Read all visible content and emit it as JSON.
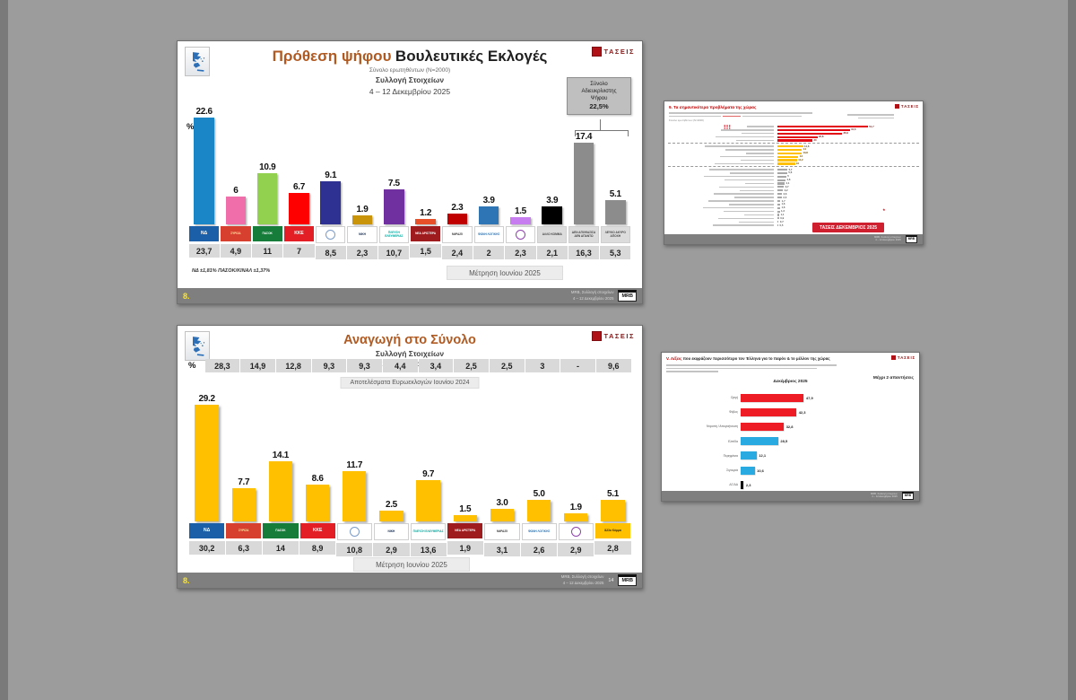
{
  "brand": "ΤΑΣΕΙΣ",
  "mrb": "MRB",
  "footer_note": {
    "line1": "MRB, Συλλογή στοιχείων",
    "line2": "4 – 12 Δεκεμβρίου 2025"
  },
  "slides": {
    "voting_intention": {
      "title_accent": "Πρόθεση ψήφου",
      "title_rest": "Βουλευτικές Εκλογές",
      "subtitle_n": "Σύνολο ερωτηθέντων (Ν=2000)",
      "subtitle_collect": "Συλλογή Στοιχείων",
      "subtitle_dates": "4 – 12 Δεκεμβρίου 2025",
      "percent_label": "%",
      "undecided": {
        "l1": "Σύνολο",
        "l2": "Αδιευκρίνιστης",
        "l3": "Ψήφου",
        "value": "22,5%"
      },
      "footnote": "ΝΔ ±1,81% ΠΑΣΟΚ/ΚΙΝΑΛ ±1,37%",
      "prev_box_label": "Μέτρηση Ιουνίου 2025",
      "page_badge": "8.",
      "parties": [
        {
          "name": "ΝΔ",
          "logo_text": "ΝΔ",
          "logo_style": "text",
          "logo_bg": "#1b5fa8",
          "logo_fg": "#ffffff",
          "logo_big": true,
          "color": "#1a86c8",
          "value": "22.6",
          "v": 22.6,
          "prev": "23,7"
        },
        {
          "name": "ΣΥΡΙΖΑ",
          "logo_text": "ΣΥΡΙΖΑ",
          "logo_style": "text",
          "logo_bg": "#d7402e",
          "logo_fg": "#ffe9a8",
          "color": "#f06eaa",
          "value": "6",
          "v": 6,
          "prev": "4,9"
        },
        {
          "name": "ΠΑΣΟΚ",
          "logo_text": "ΠΑΣΟΚ",
          "logo_style": "text",
          "logo_bg": "#157c3a",
          "logo_fg": "#ffffff",
          "color": "#92d050",
          "value": "10.9",
          "v": 10.9,
          "prev": "11"
        },
        {
          "name": "ΚΚΕ",
          "logo_text": "ΚΚΕ",
          "logo_style": "text",
          "logo_bg": "#e31e24",
          "logo_fg": "#ffffff",
          "logo_big": true,
          "color": "#fe0000",
          "value": "6.7",
          "v": 6.7,
          "prev": "7"
        },
        {
          "name": "ΕΛΛΗΝΙΚΗ ΛΥΣΗ",
          "logo_text": "",
          "logo_style": "ring",
          "logo_bg": "#ffffff",
          "logo_fg": "#7c9cc8",
          "color": "#2e3192",
          "value": "9.1",
          "v": 9.1,
          "prev": "8,5"
        },
        {
          "name": "ΝΙΚΗ",
          "logo_text": "ΝΙΚΗ",
          "logo_style": "text",
          "logo_bg": "#ffffff",
          "logo_fg": "#12284b",
          "color": "#c9940a",
          "value": "1.9",
          "v": 1.9,
          "prev": "2,3"
        },
        {
          "name": "ΠΛΕΥΣΗ ΕΛΕΥΘΕΡΙΑΣ",
          "logo_text": "ΠΛΕΥΣΗ ΕΛΕΥΘΕΡΙΑΣ",
          "logo_style": "text",
          "logo_bg": "#ffffff",
          "logo_fg": "#00a79d",
          "color": "#7030a0",
          "value": "7.5",
          "v": 7.5,
          "prev": "10,7"
        },
        {
          "name": "ΝΕΑ ΑΡΙΣΤΕΡΑ",
          "logo_text": "ΝΕΑ ΑΡΙΣΤΕΡΑ",
          "logo_style": "text",
          "logo_bg": "#9e1b1e",
          "logo_fg": "#ffffff",
          "color": "#e8502a",
          "value": "1.2",
          "v": 1.2,
          "prev": "1,5"
        },
        {
          "name": "ΜέΡΑ25",
          "logo_text": "ΜέΡΑ25",
          "logo_style": "text",
          "logo_bg": "#ffffff",
          "logo_fg": "#3a3a3a",
          "color": "#c00000",
          "value": "2.3",
          "v": 2.3,
          "prev": "2,4"
        },
        {
          "name": "ΦΩΝΗ ΛΟΓΙΚΗΣ",
          "logo_text": "ΦΩΝΗ ΛΟΓΙΚΗΣ",
          "logo_style": "text",
          "logo_bg": "#ffffff",
          "logo_fg": "#2e75b6",
          "color": "#2e75b6",
          "value": "3.9",
          "v": 3.9,
          "prev": "2"
        },
        {
          "name": "ΚΙΝΗΜΑ ΔΗΜΟΚΡΑΤΙΑΣ",
          "logo_text": "",
          "logo_style": "ring",
          "logo_bg": "#ffffff",
          "logo_fg": "#8e44ad",
          "color": "#c77df0",
          "value": "1.5",
          "v": 1.5,
          "prev": "2,3"
        },
        {
          "name": "ΑΛΛΟ ΚΟΜΜΑ",
          "logo_text": "ΑΛΛΟ ΚΟΜΜΑ",
          "logo_style": "text",
          "logo_bg": "#dcdcdc",
          "logo_fg": "#444444",
          "color": "#000000",
          "value": "3.9",
          "v": 3.9,
          "prev": "2,1"
        },
        {
          "name": "ΔΕΝ ΑΠΟΦΑΣΙΣΑ / ΔΕΝ ΑΠΑΝΤΩ",
          "logo_text": "ΔΕΝ ΑΠΟΦΑΣΙΣΑ ΔΕΝ ΑΠΑΝΤΩ",
          "logo_style": "text",
          "logo_bg": "#dcdcdc",
          "logo_fg": "#444444",
          "color": "#8c8c8c",
          "value": "17.4",
          "v": 17.4,
          "prev": "16,3"
        },
        {
          "name": "ΛΕΥΚΟ / ΑΚΥΡΟ / ΑΠΟΧΗ",
          "logo_text": "ΛΕΥΚΟ ΑΚΥΡΟ ΑΠΟΧΗ",
          "logo_style": "text",
          "logo_bg": "#dcdcdc",
          "logo_fg": "#444444",
          "color": "#8c8c8c",
          "value": "5.1",
          "v": 5.1,
          "prev": "5,3"
        }
      ]
    },
    "projection": {
      "title": "Αναγωγή στο Σύνολο",
      "subtitle_collect": "Συλλογή Στοιχείων",
      "subtitle_dates": "4 – 12 Δεκεμβρίου 2025",
      "percent_label": "%",
      "euro_label": "Αποτελέσματα Ευρωεκλογών Ιουνίου 2024",
      "euro_values": [
        "28,3",
        "14,9",
        "12,8",
        "9,3",
        "9,3",
        "4,4",
        "3,4",
        "2,5",
        "2,5",
        "3",
        "-",
        "9,6"
      ],
      "prev_box_label": "Μέτρηση Ιουνίου 2025",
      "page_badge": "8.",
      "page_number": "14",
      "parties": [
        {
          "name": "ΝΔ",
          "logo_text": "ΝΔ",
          "logo_style": "text",
          "logo_bg": "#1b5fa8",
          "logo_fg": "#ffffff",
          "logo_big": true,
          "color": "#ffc000",
          "value": "29.2",
          "v": 29.2,
          "prev": "30,2"
        },
        {
          "name": "ΣΥΡΙΖΑ",
          "logo_text": "ΣΥΡΙΖΑ",
          "logo_style": "text",
          "logo_bg": "#d7402e",
          "logo_fg": "#ffe9a8",
          "color": "#ffc000",
          "value": "7.7",
          "v": 7.7,
          "prev": "6,3"
        },
        {
          "name": "ΠΑΣΟΚ",
          "logo_text": "ΠΑΣΟΚ",
          "logo_style": "text",
          "logo_bg": "#157c3a",
          "logo_fg": "#ffffff",
          "color": "#ffc000",
          "value": "14.1",
          "v": 14.1,
          "prev": "14"
        },
        {
          "name": "ΚΚΕ",
          "logo_text": "ΚΚΕ",
          "logo_style": "text",
          "logo_bg": "#e31e24",
          "logo_fg": "#ffffff",
          "logo_big": true,
          "color": "#ffc000",
          "value": "8.6",
          "v": 8.6,
          "prev": "8,9"
        },
        {
          "name": "ΕΛΛΗΝΙΚΗ ΛΥΣΗ",
          "logo_text": "",
          "logo_style": "ring",
          "logo_bg": "#ffffff",
          "logo_fg": "#7c9cc8",
          "color": "#ffc000",
          "value": "11.7",
          "v": 11.7,
          "prev": "10,8"
        },
        {
          "name": "ΝΙΚΗ",
          "logo_text": "ΝΙΚΗ",
          "logo_style": "text",
          "logo_bg": "#ffffff",
          "logo_fg": "#12284b",
          "color": "#ffc000",
          "value": "2.5",
          "v": 2.5,
          "prev": "2,9"
        },
        {
          "name": "ΠΛΕΥΣΗ ΕΛΕΥΘΕΡΙΑΣ",
          "logo_text": "ΠΛΕΥΣΗ ΕΛΕΥΘΕΡΙΑΣ",
          "logo_style": "text",
          "logo_bg": "#ffffff",
          "logo_fg": "#00a79d",
          "color": "#ffc000",
          "value": "9.7",
          "v": 9.7,
          "prev": "13,6"
        },
        {
          "name": "ΝΕΑ ΑΡΙΣΤΕΡΑ",
          "logo_text": "ΝΕΑ ΑΡΙΣΤΕΡΑ",
          "logo_style": "text",
          "logo_bg": "#9e1b1e",
          "logo_fg": "#ffffff",
          "color": "#ffc000",
          "value": "1.5",
          "v": 1.5,
          "prev": "1,9"
        },
        {
          "name": "ΜέΡΑ25",
          "logo_text": "ΜέΡΑ25",
          "logo_style": "text",
          "logo_bg": "#ffffff",
          "logo_fg": "#3a3a3a",
          "color": "#ffc000",
          "value": "3.0",
          "v": 3.0,
          "prev": "3,1"
        },
        {
          "name": "ΦΩΝΗ ΛΟΓΙΚΗΣ",
          "logo_text": "ΦΩΝΗ ΛΟΓΙΚΗΣ",
          "logo_style": "text",
          "logo_bg": "#ffffff",
          "logo_fg": "#2e75b6",
          "color": "#ffc000",
          "value": "5.0",
          "v": 5.0,
          "prev": "2,6"
        },
        {
          "name": "ΚΙΝΗΜΑ ΔΗΜΟΚΡΑΤΙΑΣ",
          "logo_text": "",
          "logo_style": "ring",
          "logo_bg": "#ffffff",
          "logo_fg": "#8e44ad",
          "color": "#ffc000",
          "value": "1.9",
          "v": 1.9,
          "prev": "2,9"
        },
        {
          "name": "ΑΛΛΟ ΚΟΜΜΑ",
          "logo_text": "Άλλο Κόμμα",
          "logo_style": "text",
          "logo_bg": "#ffc000",
          "logo_fg": "#222222",
          "color": "#ffc000",
          "value": "5.1",
          "v": 5.1,
          "prev": "2,8"
        }
      ]
    },
    "problems": {
      "title": "9. Τα σημαντικότερα προβλήματα της χώρας",
      "n_note": "Σύνολο ερωτηθέντων (Ν=2000)",
      "alert": "!!!",
      "badge": "ΤΑΣΕΙΣ ΔΕΚΕΜΒΡΙΟΣ 2025",
      "redmark": "*",
      "labels_legible": false,
      "groups": [
        {
          "color": "#e30613",
          "value_color": "#8a1111",
          "rows": [
            {
              "label": "",
              "value": "51,7",
              "v": 51.7
            },
            {
              "label": "",
              "value": "41,3",
              "v": 41.3
            },
            {
              "label": "",
              "value": "36,9",
              "v": 36.9
            },
            {
              "label": "",
              "value": "22,8",
              "v": 22.8
            },
            {
              "label": "",
              "value": "20",
              "v": 20
            }
          ]
        },
        {
          "color": "#ffc000",
          "value_color": "#6e4a00",
          "rows": [
            {
              "label": "",
              "value": "14,6",
              "v": 14.6
            },
            {
              "label": "",
              "value": "14",
              "v": 14
            },
            {
              "label": "",
              "value": "13,8",
              "v": 13.8
            },
            {
              "label": "",
              "value": "12",
              "v": 12
            },
            {
              "label": "",
              "value": "11,2",
              "v": 11.2
            },
            {
              "label": "",
              "value": "10",
              "v": 10
            }
          ]
        },
        {
          "color": "#a6a6a6",
          "value_color": "#555555",
          "rows": [
            {
              "label": "",
              "value": "5,7",
              "v": 5.7
            },
            {
              "label": "",
              "value": "5,6",
              "v": 5.6
            },
            {
              "label": "",
              "value": "5",
              "v": 5
            },
            {
              "label": "",
              "value": "4,6",
              "v": 4.6
            },
            {
              "label": "",
              "value": "4,1",
              "v": 4.1
            },
            {
              "label": "",
              "value": "3,7",
              "v": 3.7
            },
            {
              "label": "",
              "value": "3,2",
              "v": 3.2
            },
            {
              "label": "",
              "value": "2,6",
              "v": 2.6
            },
            {
              "label": "",
              "value": "2,5",
              "v": 2.5
            },
            {
              "label": "",
              "value": "1,7",
              "v": 1.7
            },
            {
              "label": "",
              "value": "1,6",
              "v": 1.6
            },
            {
              "label": "",
              "value": "1,6",
              "v": 1.6
            },
            {
              "label": "",
              "value": "1,3",
              "v": 1.3
            },
            {
              "label": "",
              "value": "1,1",
              "v": 1.1
            },
            {
              "label": "",
              "value": "0,9",
              "v": 0.9
            },
            {
              "label": "",
              "value": "0,7",
              "v": 0.7
            },
            {
              "label": "",
              "value": "0,5",
              "v": 0.5
            }
          ]
        }
      ]
    },
    "words": {
      "title_accent": "V. Λέξεις",
      "title_rest": "που εκφράζουν περισσότερο τον Έλληνα για το παρόν & το μέλλον της χώρας",
      "note": "Μέχρι 2 απαντήσεις",
      "period": "Δεκέμβριος 2025",
      "rows": [
        {
          "label": "Οργή",
          "value": "47,9",
          "v": 47.9,
          "color": "#ee1c25"
        },
        {
          "label": "Φόβος",
          "value": "42,3",
          "v": 42.3,
          "color": "#ee1c25"
        },
        {
          "label": "Ντροπή / Απογοήτευση",
          "value": "32,8",
          "v": 32.8,
          "color": "#ee1c25"
        },
        {
          "label": "Ελπίδα",
          "value": "28,5",
          "v": 28.5,
          "color": "#29abe2"
        },
        {
          "label": "Περηφάνια",
          "value": "12,1",
          "v": 12.1,
          "color": "#29abe2"
        },
        {
          "label": "Σιγουριά",
          "value": "10,6",
          "v": 10.6,
          "color": "#29abe2"
        },
        {
          "label": "ΔΓ/ΔΑ",
          "value": "2,3",
          "v": 2.3,
          "color": "#111111"
        }
      ],
      "ticks": [
        {
          "label": "0",
          "v": 0
        },
        {
          "label": "50",
          "v": 50
        },
        {
          "label": "100",
          "v": 100
        }
      ]
    }
  },
  "chart_data": [
    {
      "type": "bar",
      "title": "Πρόθεση ψήφου Βουλευτικές Εκλογές",
      "subtitle": "Σύνολο ερωτηθέντων (Ν=2000) · Συλλογή Στοιχείων 4 – 12 Δεκεμβρίου 2025",
      "categories": [
        "ΝΔ",
        "ΣΥΡΙΖΑ",
        "ΠΑΣΟΚ",
        "ΚΚΕ",
        "ΕΛΛΗΝΙΚΗ ΛΥΣΗ",
        "ΝΙΚΗ",
        "ΠΛΕΥΣΗ ΕΛΕΥΘΕΡΙΑΣ",
        "ΝΕΑ ΑΡΙΣΤΕΡΑ",
        "ΜέΡΑ25",
        "ΦΩΝΗ ΛΟΓΙΚΗΣ",
        "ΚΙΝΗΜΑ ΔΗΜΟΚΡΑΤΙΑΣ",
        "ΑΛΛΟ ΚΟΜΜΑ",
        "ΔΕΝ ΑΠΟΦΑΣΙΣΑ / ΔΕΝ ΑΠΑΝΤΩ",
        "ΛΕΥΚΟ / ΑΚΥΡΟ / ΑΠΟΧΗ"
      ],
      "series": [
        {
          "name": "Δεκέμβριος 2025",
          "values": [
            22.6,
            6,
            10.9,
            6.7,
            9.1,
            1.9,
            7.5,
            1.2,
            2.3,
            3.9,
            1.5,
            3.9,
            17.4,
            5.1
          ]
        },
        {
          "name": "Μέτρηση Ιουνίου 2025",
          "values": [
            23.7,
            4.9,
            11,
            7,
            8.5,
            2.3,
            10.7,
            1.5,
            2.4,
            2,
            2.3,
            2.1,
            16.3,
            5.3
          ]
        }
      ],
      "annotations": {
        "undecided_total": "Σύνολο Αδιευκρίνιστης Ψήφου 22,5%",
        "margin_of_error": "ΝΔ ±1,81% ΠΑΣΟΚ/ΚΙΝΑΛ ±1,37%"
      },
      "ylabel": "%"
    },
    {
      "type": "bar",
      "orientation": "horizontal",
      "title": "9. Τα σημαντικότερα προβλήματα της χώρας",
      "labels_legible": false,
      "groups": [
        {
          "color": "#e30613",
          "values": [
            51.7,
            41.3,
            36.9,
            22.8,
            20
          ]
        },
        {
          "color": "#ffc000",
          "values": [
            14.6,
            14,
            13.8,
            12,
            11.2,
            10
          ]
        },
        {
          "color": "#a6a6a6",
          "values": [
            5.7,
            5.6,
            5,
            4.6,
            4.1,
            3.7,
            3.2,
            2.6,
            2.5,
            1.7,
            1.6,
            1.6,
            1.3,
            1.1,
            0.9,
            0.7,
            0.5
          ]
        }
      ],
      "badge": "ΤΑΣΕΙΣ ΔΕΚΕΜΒΡΙΟΣ 2025"
    },
    {
      "type": "bar",
      "title": "Αναγωγή στο Σύνολο",
      "subtitle": "Συλλογή Στοιχείων 4 – 12 Δεκεμβρίου 2025",
      "categories": [
        "ΝΔ",
        "ΣΥΡΙΖΑ",
        "ΠΑΣΟΚ",
        "ΚΚΕ",
        "ΕΛΛΗΝΙΚΗ ΛΥΣΗ",
        "ΝΙΚΗ",
        "ΠΛΕΥΣΗ ΕΛΕΥΘΕΡΙΑΣ",
        "ΝΕΑ ΑΡΙΣΤΕΡΑ",
        "ΜέΡΑ25",
        "ΦΩΝΗ ΛΟΓΙΚΗΣ",
        "ΚΙΝΗΜΑ ΔΗΜΟΚΡΑΤΙΑΣ",
        "ΑΛΛΟ ΚΟΜΜΑ"
      ],
      "series": [
        {
          "name": "Αποτελέσματα Ευρωεκλογών Ιουνίου 2024",
          "values": [
            28.3,
            14.9,
            12.8,
            9.3,
            9.3,
            4.4,
            3.4,
            2.5,
            2.5,
            3,
            null,
            9.6
          ]
        },
        {
          "name": "Δεκέμβριος 2025",
          "values": [
            29.2,
            7.7,
            14.1,
            8.6,
            11.7,
            2.5,
            9.7,
            1.5,
            3.0,
            5.0,
            1.9,
            5.1
          ]
        },
        {
          "name": "Μέτρηση Ιουνίου 2025",
          "values": [
            30.2,
            6.3,
            14,
            8.9,
            10.8,
            2.9,
            13.6,
            1.9,
            3.1,
            2.6,
            2.9,
            2.8
          ]
        }
      ],
      "bar_color": "#ffc000",
      "ylabel": "%"
    },
    {
      "type": "bar",
      "orientation": "horizontal",
      "title": "V. Λέξεις που εκφράζουν περισσότερο τον Έλληνα για το παρόν & το μέλλον της χώρας",
      "period": "Δεκέμβριος 2025",
      "note": "Μέχρι 2 απαντήσεις",
      "categories": [
        "Οργή",
        "Φόβος",
        "Ντροπή / Απογοήτευση",
        "Ελπίδα",
        "Περηφάνια",
        "Σιγουριά",
        "ΔΓ/ΔΑ"
      ],
      "values": [
        47.9,
        42.3,
        32.8,
        28.5,
        12.1,
        10.6,
        2.3
      ],
      "colors": [
        "#ee1c25",
        "#ee1c25",
        "#ee1c25",
        "#29abe2",
        "#29abe2",
        "#29abe2",
        "#111111"
      ],
      "xlim": [
        0,
        100
      ]
    }
  ]
}
